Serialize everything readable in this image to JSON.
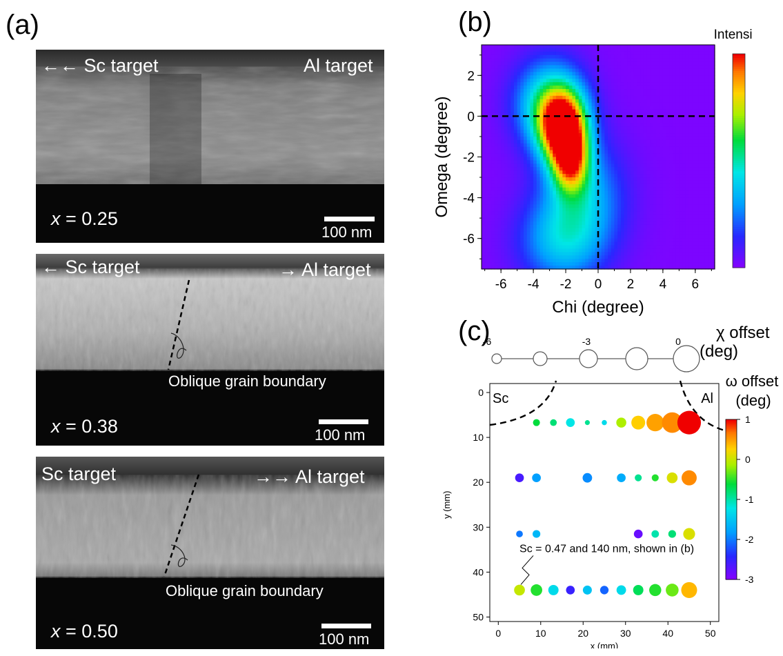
{
  "panels": {
    "a": "(a)",
    "b": "(b)",
    "c": "(c)"
  },
  "tem_images": [
    {
      "left_label": "←← Sc target",
      "right_label": "Al target",
      "x_prefix": "x",
      "x_value": "= 0.25",
      "scale_label": "100 nm",
      "boundary_label": ""
    },
    {
      "left_label": "←  Sc target",
      "right_label": "→ Al target",
      "x_prefix": "x",
      "x_value": "= 0.38",
      "scale_label": "100 nm",
      "boundary_label": "Oblique grain boundary"
    },
    {
      "left_label": "Sc target",
      "right_label": "→→ Al target",
      "x_prefix": "x",
      "x_value": "= 0.50",
      "scale_label": "100 nm",
      "boundary_label": "Oblique grain boundary"
    }
  ],
  "chart_data": [
    {
      "type": "heatmap",
      "xlabel": "Chi (degree)",
      "ylabel": "Omega (degree)",
      "xlim": [
        -7.2,
        7.2
      ],
      "ylim": [
        -7.5,
        3.5
      ],
      "xticks": [
        -6,
        -4,
        -2,
        0,
        2,
        4,
        6
      ],
      "yticks": [
        2,
        0,
        -2,
        -4,
        -6
      ],
      "colorbar_label": "Intensity",
      "crosshair": {
        "chi": 0,
        "omega": 0
      },
      "peaks": [
        {
          "chi": -2.2,
          "omega": -0.5,
          "amp": 1.0,
          "schi": 1.0,
          "som": 1.2
        },
        {
          "chi": -1.7,
          "omega": -2.2,
          "amp": 0.7,
          "schi": 0.8,
          "som": 1.1
        },
        {
          "chi": -3.0,
          "omega": 0.6,
          "amp": 0.5,
          "schi": 1.5,
          "som": 1.5
        },
        {
          "chi": -1.0,
          "omega": -4.0,
          "amp": 0.35,
          "schi": 1.8,
          "som": 2.0
        },
        {
          "chi": -2.4,
          "omega": -6.2,
          "amp": 0.3,
          "schi": 1.8,
          "som": 1.5
        }
      ]
    },
    {
      "type": "scatter",
      "xlabel": "x (mm)",
      "ylabel": "y (mm)",
      "xlim": [
        -2,
        52
      ],
      "ylim": [
        51,
        -2
      ],
      "xticks": [
        0,
        10,
        20,
        30,
        40,
        50
      ],
      "yticks": [
        0,
        10,
        20,
        30,
        40,
        50
      ],
      "corner_labels": [
        "Sc",
        "Al"
      ],
      "size_legend_title": "χ offset",
      "size_legend_unit": "(deg)",
      "size_legend_ticks": [
        "-6",
        "-3",
        "0"
      ],
      "size_legend_values": [
        -6,
        -4.5,
        -3,
        -1.5,
        0
      ],
      "colorbar_title": "ω offset",
      "colorbar_unit": "(deg)",
      "colorbar_ticks": [
        1,
        0,
        -1,
        -2,
        -3
      ],
      "clim": [
        -3,
        1
      ],
      "annotation": "Sc = 0.47 and 140 nm, shown in (b)",
      "annotation_point": {
        "x": 5,
        "y": 44
      },
      "points": [
        {
          "x": 9,
          "y": 6.7,
          "chi": -6.5,
          "omega": -0.6
        },
        {
          "x": 13,
          "y": 6.7,
          "chi": -6.6,
          "omega": -0.8
        },
        {
          "x": 17,
          "y": 6.7,
          "chi": -5.8,
          "omega": -1.2
        },
        {
          "x": 21,
          "y": 6.7,
          "chi": -7.3,
          "omega": -0.9
        },
        {
          "x": 25,
          "y": 6.7,
          "chi": -7.2,
          "omega": -1.3
        },
        {
          "x": 29,
          "y": 6.7,
          "chi": -5.3,
          "omega": -0.1
        },
        {
          "x": 33,
          "y": 6.7,
          "chi": -3.8,
          "omega": 0.3
        },
        {
          "x": 37,
          "y": 6.7,
          "chi": -2.4,
          "omega": 0.5
        },
        {
          "x": 41,
          "y": 6.7,
          "chi": -1.2,
          "omega": 0.6
        },
        {
          "x": 45,
          "y": 6.7,
          "chi": 0.0,
          "omega": 1.0
        },
        {
          "x": 5,
          "y": 19,
          "chi": -5.8,
          "omega": -2.6
        },
        {
          "x": 9,
          "y": 19,
          "chi": -5.8,
          "omega": -1.8
        },
        {
          "x": 21,
          "y": 19,
          "chi": -5.5,
          "omega": -1.9
        },
        {
          "x": 29,
          "y": 19,
          "chi": -5.8,
          "omega": -1.7
        },
        {
          "x": 33,
          "y": 19,
          "chi": -6.5,
          "omega": -0.9
        },
        {
          "x": 37,
          "y": 19,
          "chi": -6.5,
          "omega": -0.5
        },
        {
          "x": 41,
          "y": 19,
          "chi": -5.0,
          "omega": 0.1
        },
        {
          "x": 45,
          "y": 19,
          "chi": -3.3,
          "omega": 0.6
        },
        {
          "x": 5,
          "y": 31.5,
          "chi": -6.6,
          "omega": -2.0
        },
        {
          "x": 9,
          "y": 31.5,
          "chi": -6.2,
          "omega": -1.6
        },
        {
          "x": 33,
          "y": 31.5,
          "chi": -5.8,
          "omega": -2.8
        },
        {
          "x": 37,
          "y": 31.5,
          "chi": -6.3,
          "omega": -1.0
        },
        {
          "x": 41,
          "y": 31.5,
          "chi": -6.2,
          "omega": -0.8
        },
        {
          "x": 45,
          "y": 31.5,
          "chi": -4.6,
          "omega": 0.1
        },
        {
          "x": 5,
          "y": 44,
          "chi": -5.0,
          "omega": 0.0
        },
        {
          "x": 9,
          "y": 44,
          "chi": -4.7,
          "omega": -0.5
        },
        {
          "x": 13,
          "y": 44,
          "chi": -5.2,
          "omega": -1.3
        },
        {
          "x": 17,
          "y": 44,
          "chi": -5.8,
          "omega": -2.5
        },
        {
          "x": 21,
          "y": 44,
          "chi": -5.7,
          "omega": -1.5
        },
        {
          "x": 25,
          "y": 44,
          "chi": -5.9,
          "omega": -2.1
        },
        {
          "x": 29,
          "y": 44,
          "chi": -5.5,
          "omega": -1.3
        },
        {
          "x": 33,
          "y": 44,
          "chi": -5.2,
          "omega": -0.7
        },
        {
          "x": 37,
          "y": 44,
          "chi": -4.5,
          "omega": -0.5
        },
        {
          "x": 41,
          "y": 44,
          "chi": -4.2,
          "omega": -0.3
        },
        {
          "x": 45,
          "y": 44,
          "chi": -3.0,
          "omega": 0.4
        }
      ]
    }
  ]
}
